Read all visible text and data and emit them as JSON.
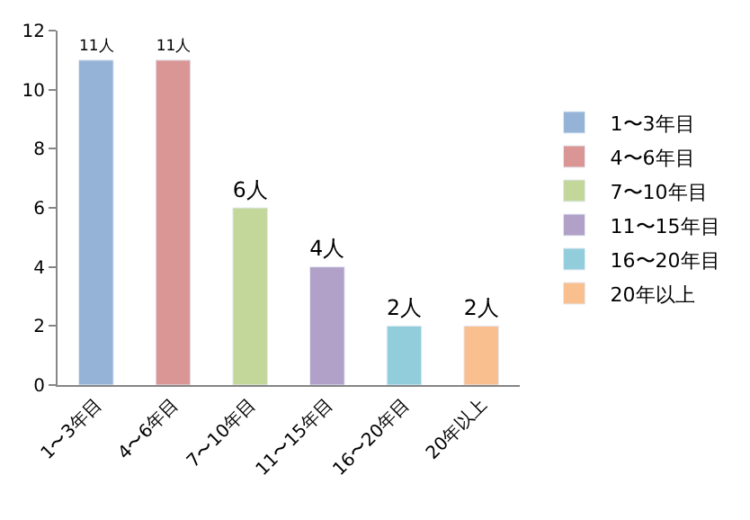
{
  "chart_data": {
    "type": "bar",
    "categories": [
      "1〜3年目",
      "4〜6年目",
      "7〜10年目",
      "11〜15年目",
      "16〜20年目",
      "20年以上"
    ],
    "series": [
      {
        "name": "1〜3年目",
        "color": "#95b3d7",
        "values": [
          11,
          null,
          null,
          null,
          null,
          null
        ],
        "value_labels": [
          "11人",
          null,
          null,
          null,
          null,
          null
        ]
      },
      {
        "name": "4〜6年目",
        "color": "#da9694",
        "values": [
          null,
          11,
          null,
          null,
          null,
          null
        ],
        "value_labels": [
          null,
          "11人",
          null,
          null,
          null,
          null
        ]
      },
      {
        "name": "7〜10年目",
        "color": "#c4d79b",
        "values": [
          null,
          null,
          6,
          null,
          null,
          null
        ],
        "value_labels": [
          null,
          null,
          "6人",
          null,
          null,
          null
        ]
      },
      {
        "name": "11〜15年目",
        "color": "#b1a0c7",
        "values": [
          null,
          null,
          null,
          4,
          null,
          null
        ],
        "value_labels": [
          null,
          null,
          null,
          "4人",
          null,
          null
        ]
      },
      {
        "name": "16〜20年目",
        "color": "#92cddc",
        "values": [
          null,
          null,
          null,
          null,
          2,
          null
        ],
        "value_labels": [
          null,
          null,
          null,
          null,
          "2人",
          null
        ]
      },
      {
        "name": "20年以上",
        "color": "#fabf8f",
        "values": [
          null,
          null,
          null,
          null,
          null,
          2
        ],
        "value_labels": [
          null,
          null,
          null,
          null,
          null,
          "2人"
        ]
      }
    ],
    "ylim": [
      0,
      12
    ],
    "yticks": [
      0,
      2,
      4,
      6,
      8,
      10,
      12
    ],
    "legend": "right"
  }
}
